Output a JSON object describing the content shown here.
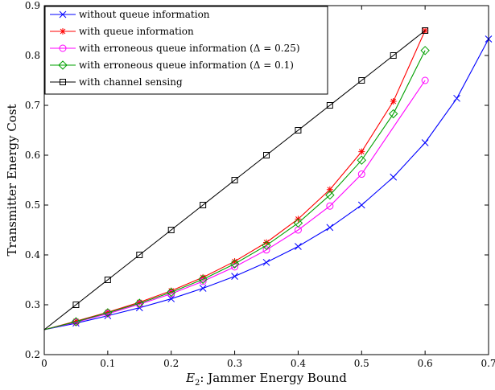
{
  "chart_data": {
    "type": "line",
    "xlabel": "E_2: Jammer Energy Bound",
    "xlabel_sym": "E",
    "xlabel_sub": "2",
    "xlabel_text": ": Jammer Energy Bound",
    "ylabel": "Transmitter Energy Cost",
    "xlim": [
      0,
      0.7
    ],
    "ylim": [
      0.2,
      0.9
    ],
    "xticks": [
      "0",
      "0.1",
      "0.2",
      "0.3",
      "0.4",
      "0.5",
      "0.6",
      "0.7"
    ],
    "yticks": [
      "0.2",
      "0.3",
      "0.4",
      "0.5",
      "0.6",
      "0.7",
      "0.8",
      "0.9"
    ],
    "grid": false,
    "legend_position": "top-left",
    "series": [
      {
        "name": "without queue information",
        "color": "#0000ff",
        "marker": "x",
        "x": [
          0,
          0.05,
          0.1,
          0.15,
          0.2,
          0.25,
          0.3,
          0.35,
          0.4,
          0.45,
          0.5,
          0.55,
          0.6,
          0.65,
          0.7
        ],
        "y": [
          0.25,
          0.263,
          0.278,
          0.294,
          0.312,
          0.333,
          0.357,
          0.385,
          0.417,
          0.455,
          0.5,
          0.556,
          0.625,
          0.714,
          0.833
        ]
      },
      {
        "name": "with queue information",
        "color": "#ff0000",
        "marker": "asterisk",
        "x": [
          0,
          0.05,
          0.1,
          0.15,
          0.2,
          0.25,
          0.3,
          0.35,
          0.4,
          0.45,
          0.5,
          0.55,
          0.6
        ],
        "y": [
          0.25,
          0.267,
          0.285,
          0.305,
          0.328,
          0.355,
          0.387,
          0.425,
          0.472,
          0.531,
          0.607,
          0.708,
          0.85
        ]
      },
      {
        "name": "with erroneous queue information (Δ = 0.25)",
        "color": "#ff00ff",
        "marker": "circle",
        "x": [
          0,
          0.05,
          0.1,
          0.15,
          0.2,
          0.25,
          0.3,
          0.35,
          0.4,
          0.45,
          0.5,
          0.6
        ],
        "y": [
          0.25,
          0.265,
          0.282,
          0.301,
          0.322,
          0.347,
          0.376,
          0.41,
          0.45,
          0.498,
          0.562,
          0.75
        ]
      },
      {
        "name": "with erroneous queue information (Δ = 0.1)",
        "color": "#00a000",
        "marker": "diamond",
        "x": [
          0,
          0.05,
          0.1,
          0.15,
          0.2,
          0.25,
          0.3,
          0.35,
          0.4,
          0.45,
          0.5,
          0.55,
          0.6
        ],
        "y": [
          0.25,
          0.266,
          0.284,
          0.303,
          0.325,
          0.351,
          0.382,
          0.419,
          0.464,
          0.52,
          0.59,
          0.683,
          0.81
        ]
      },
      {
        "name": "with channel sensing",
        "color": "#000000",
        "marker": "square",
        "x": [
          0,
          0.05,
          0.1,
          0.15,
          0.2,
          0.25,
          0.3,
          0.35,
          0.4,
          0.45,
          0.5,
          0.55,
          0.6
        ],
        "y": [
          0.25,
          0.3,
          0.35,
          0.4,
          0.45,
          0.5,
          0.55,
          0.6,
          0.65,
          0.7,
          0.75,
          0.8,
          0.85
        ]
      }
    ]
  }
}
